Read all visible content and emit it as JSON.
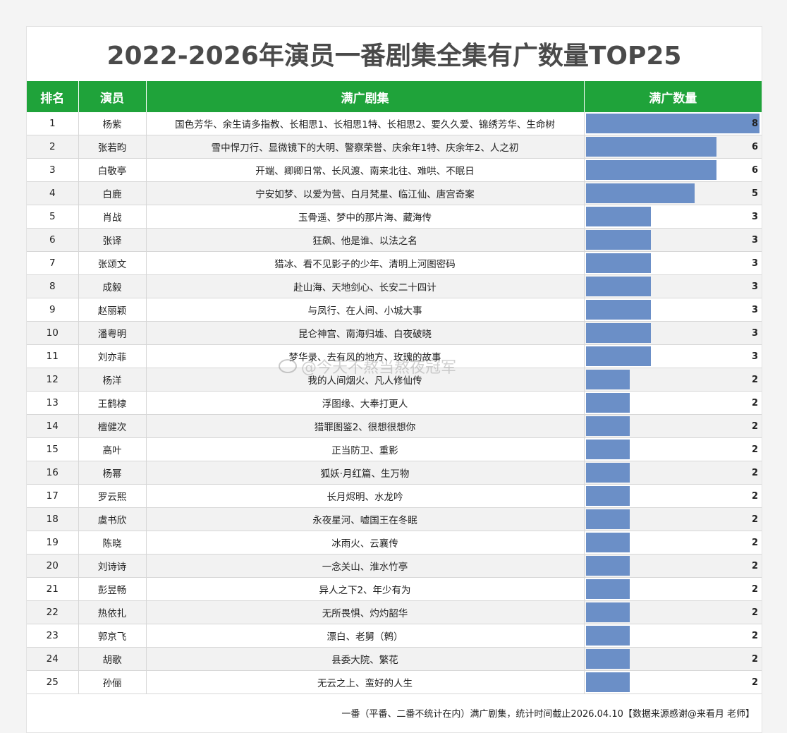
{
  "title": "2022-2026年演员一番剧集全集有广数量TOP25",
  "headers": {
    "rank": "排名",
    "actor": "演员",
    "dramas": "满广剧集",
    "count": "满广数量"
  },
  "colors": {
    "header_bg": "#1fa33a",
    "bar": "#6b8fc7"
  },
  "watermark": "@今天不熬当熬夜冠军",
  "footer": "一番（平番、二番不统计在内）满广剧集，统计时间截止2026.04.10【数据来源感谢@来看月 老师】",
  "chart_data": {
    "type": "table",
    "title": "2022-2026年演员一番剧集全集有广数量TOP25",
    "columns": [
      "排名",
      "演员",
      "满广剧集",
      "满广数量"
    ],
    "xlim": [
      0,
      8
    ],
    "rows": [
      {
        "rank": "1",
        "actor": "杨紫",
        "dramas": "国色芳华、余生请多指教、长相思1、长相思1特、长相思2、要久久爱、锦绣芳华、生命树",
        "count": 8
      },
      {
        "rank": "2",
        "actor": "张若昀",
        "dramas": "雪中悍刀行、显微镜下的大明、警察荣誉、庆余年1特、庆余年2、人之初",
        "count": 6
      },
      {
        "rank": "3",
        "actor": "白敬亭",
        "dramas": "开端、卿卿日常、长风渡、南来北往、难哄、不眠日",
        "count": 6
      },
      {
        "rank": "4",
        "actor": "白鹿",
        "dramas": "宁安如梦、以爱为营、白月梵星、临江仙、唐宫奇案",
        "count": 5
      },
      {
        "rank": "5",
        "actor": "肖战",
        "dramas": "玉骨遥、梦中的那片海、藏海传",
        "count": 3
      },
      {
        "rank": "6",
        "actor": "张译",
        "dramas": "狂飙、他是谁、以法之名",
        "count": 3
      },
      {
        "rank": "7",
        "actor": "张颂文",
        "dramas": "猎冰、看不见影子的少年、清明上河图密码",
        "count": 3
      },
      {
        "rank": "8",
        "actor": "成毅",
        "dramas": "赴山海、天地剑心、长安二十四计",
        "count": 3
      },
      {
        "rank": "9",
        "actor": "赵丽颖",
        "dramas": "与凤行、在人间、小城大事",
        "count": 3
      },
      {
        "rank": "10",
        "actor": "潘粤明",
        "dramas": "昆仑神宫、南海归墟、白夜破晓",
        "count": 3
      },
      {
        "rank": "11",
        "actor": "刘亦菲",
        "dramas": "梦华录、去有风的地方、玫瑰的故事",
        "count": 3
      },
      {
        "rank": "12",
        "actor": "杨洋",
        "dramas": "我的人间烟火、凡人修仙传",
        "count": 2
      },
      {
        "rank": "13",
        "actor": "王鹤棣",
        "dramas": "浮图缘、大奉打更人",
        "count": 2
      },
      {
        "rank": "14",
        "actor": "檀健次",
        "dramas": "猎罪图鉴2、很想很想你",
        "count": 2
      },
      {
        "rank": "15",
        "actor": "高叶",
        "dramas": "正当防卫、重影",
        "count": 2
      },
      {
        "rank": "16",
        "actor": "杨幂",
        "dramas": "狐妖·月红篇、生万物",
        "count": 2
      },
      {
        "rank": "17",
        "actor": "罗云熙",
        "dramas": "长月烬明、水龙吟",
        "count": 2
      },
      {
        "rank": "18",
        "actor": "虞书欣",
        "dramas": "永夜星河、嘘国王在冬眠",
        "count": 2
      },
      {
        "rank": "19",
        "actor": "陈晓",
        "dramas": "冰雨火、云襄传",
        "count": 2
      },
      {
        "rank": "20",
        "actor": "刘诗诗",
        "dramas": "一念关山、淮水竹亭",
        "count": 2
      },
      {
        "rank": "21",
        "actor": "彭昱畅",
        "dramas": "异人之下2、年少有为",
        "count": 2
      },
      {
        "rank": "22",
        "actor": "热依扎",
        "dramas": "无所畏惧、灼灼韶华",
        "count": 2
      },
      {
        "rank": "23",
        "actor": "郭京飞",
        "dramas": "漂白、老舅（鹩）",
        "count": 2
      },
      {
        "rank": "24",
        "actor": "胡歌",
        "dramas": "县委大院、繁花",
        "count": 2
      },
      {
        "rank": "25",
        "actor": "孙俪",
        "dramas": "无云之上、蛮好的人生",
        "count": 2
      }
    ]
  }
}
